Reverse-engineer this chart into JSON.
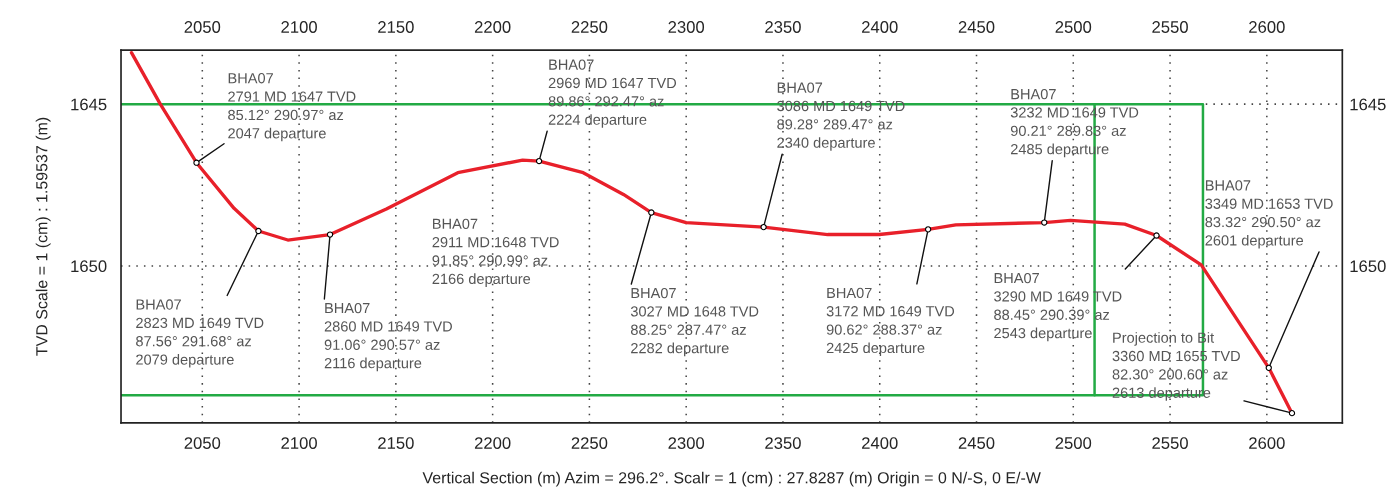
{
  "chart_data": {
    "type": "line",
    "xlabel": "Vertical Section (m) Azim = 296.2°. Scalr = 1 (cm) : 27.8287 (m) Origin = 0 N/-S, 0 E/-W",
    "ylabel": "TVD Scale = 1 (cm) : 1.59537 (m)",
    "xlim": [
      2008,
      2639
    ],
    "xticks": [
      2050,
      2100,
      2150,
      2200,
      2250,
      2300,
      2350,
      2400,
      2450,
      2500,
      2550,
      2600
    ],
    "x2lim": [
      2008,
      2639
    ],
    "x2ticks": [
      2050,
      2100,
      2150,
      2200,
      2250,
      2300,
      2350,
      2400,
      2450,
      2500,
      2550,
      2600
    ],
    "ylim": [
      1654.85,
      1643.33
    ],
    "yticks": [
      1645,
      1650
    ],
    "y2lim": [
      1654.85,
      1643.33
    ],
    "y2ticks": [
      1645,
      1650
    ],
    "grid": true,
    "series": [
      {
        "color": "#22aa44",
        "x": [
          2008,
          2567,
          2567,
          2008
        ],
        "values": [
          1645,
          1645,
          1654,
          1654
        ]
      },
      {
        "color": "#22aa44",
        "x": [
          2511,
          2511
        ],
        "values": [
          1645,
          1654
        ]
      },
      {
        "color": "#e8202a",
        "x": [
          2013.4,
          2028.3,
          2047,
          2066.4,
          2079,
          2094.2,
          2116,
          2145.1,
          2182,
          2215.5,
          2224,
          2246.8,
          2267.6,
          2282,
          2300,
          2340,
          2373.1,
          2399.8,
          2425,
          2439.3,
          2485,
          2498.6,
          2526.6,
          2543,
          2566.1,
          2601,
          2613
        ],
        "values": [
          1643.41,
          1645.0,
          1646.81,
          1648.22,
          1648.92,
          1649.2,
          1649.03,
          1648.24,
          1647.12,
          1646.73,
          1646.76,
          1647.12,
          1647.79,
          1648.35,
          1648.66,
          1648.8,
          1649.03,
          1649.03,
          1648.87,
          1648.73,
          1648.66,
          1648.59,
          1648.71,
          1649.06,
          1649.97,
          1653.15,
          1654.55
        ]
      },
      {
        "type": "scatter",
        "color": "#ffffff",
        "marker": "circle",
        "x": [
          2047,
          2079,
          2116,
          2224,
          2282,
          2340,
          2425,
          2485,
          2543,
          2601,
          2613
        ],
        "values": [
          1646.81,
          1648.92,
          1649.03,
          1646.76,
          1648.35,
          1648.8,
          1648.87,
          1648.66,
          1649.06,
          1653.15,
          1654.55
        ]
      }
    ],
    "annotations": [
      {
        "text": "BHA07\n2791 MD 1647 TVD\n85.12° 290.97° az\n2047 departure",
        "x": 2047,
        "y": 1646.81
      },
      {
        "text": "BHA07\n2823 MD 1649 TVD\n87.56° 291.68° az\n2079 departure",
        "x": 2079,
        "y": 1648.92
      },
      {
        "text": "BHA07\n2860 MD 1649 TVD\n91.06° 290.57° az\n2116 departure",
        "x": 2116,
        "y": 1649.03
      },
      {
        "text": "BHA07\n2969 MD 1647 TVD\n89.86° 292.47° az\n2224 departure",
        "x": 2224,
        "y": 1646.76
      },
      {
        "text": "BHA07\n2911 MD 1648 TVD\n91.85° 290.99° az\n2166 departure",
        "x": 2166,
        "y": 1647.6
      },
      {
        "text": "BHA07\n3027 MD 1648 TVD\n88.25° 287.47° az\n2282 departure",
        "x": 2282,
        "y": 1648.35
      },
      {
        "text": "BHA07\n3086 MD 1649 TVD\n89.28° 289.47° az\n2340 departure",
        "x": 2340,
        "y": 1648.8
      },
      {
        "text": "BHA07\n3172 MD 1649 TVD\n90.62° 288.37° az\n2425 departure",
        "x": 2425,
        "y": 1648.87
      },
      {
        "text": "BHA07\n3232 MD 1649 TVD\n90.21° 289.83° az\n2485 departure",
        "x": 2485,
        "y": 1648.66
      },
      {
        "text": "BHA07\n3290 MD 1649 TVD\n88.45° 290.39° az\n2543 departure",
        "x": 2543,
        "y": 1649.06
      },
      {
        "text": "BHA07\n3349 MD 1653 TVD\n83.32° 290.50° az\n2601 departure",
        "x": 2601,
        "y": 1653.15
      },
      {
        "text": "Projection to Bit\n3360 MD 1655 TVD\n82.30° 200.60° az\n2613 departure",
        "x": 2613,
        "y": 1654.55
      }
    ]
  }
}
